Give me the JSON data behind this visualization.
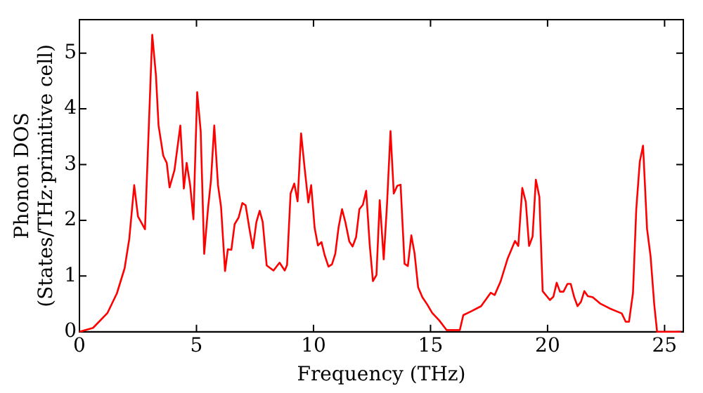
{
  "chart_data": {
    "type": "line",
    "xlabel": "Frequency (THz)",
    "ylabel": "Phonon DOS\n(States/THz·primitive cell)",
    "xlim": [
      0,
      25.8
    ],
    "ylim": [
      0,
      5.6
    ],
    "xticks": [
      0,
      5,
      10,
      15,
      20,
      25
    ],
    "yticks": [
      0,
      1,
      2,
      3,
      4,
      5
    ],
    "grid": false,
    "legend": false,
    "marker": "none",
    "line_style": "solid",
    "series": [
      {
        "color": "#ff0000",
        "x": [
          0,
          0.58,
          1.2,
          1.6,
          1.93,
          2.13,
          2.34,
          2.5,
          2.8,
          3.11,
          3.27,
          3.38,
          3.58,
          3.73,
          3.85,
          4.06,
          4.31,
          4.46,
          4.58,
          4.73,
          4.87,
          5.03,
          5.18,
          5.33,
          5.49,
          5.62,
          5.76,
          5.92,
          6.05,
          6.22,
          6.34,
          6.49,
          6.63,
          6.8,
          6.96,
          7.1,
          7.27,
          7.41,
          7.56,
          7.7,
          7.83,
          8.0,
          8.29,
          8.55,
          8.77,
          8.87,
          9.02,
          9.18,
          9.32,
          9.47,
          9.63,
          9.78,
          9.9,
          10.05,
          10.19,
          10.34,
          10.48,
          10.64,
          10.79,
          10.93,
          11.07,
          11.22,
          11.36,
          11.53,
          11.67,
          11.82,
          11.96,
          12.11,
          12.25,
          12.4,
          12.54,
          12.69,
          12.83,
          13.0,
          13.14,
          13.29,
          13.43,
          13.58,
          13.72,
          13.89,
          14.03,
          14.18,
          14.32,
          14.47,
          14.65,
          14.86,
          15.07,
          15.38,
          15.69,
          16.25,
          16.4,
          16.75,
          17.16,
          17.57,
          17.74,
          17.99,
          18.3,
          18.61,
          18.75,
          18.92,
          19.07,
          19.21,
          19.36,
          19.5,
          19.65,
          19.79,
          20.1,
          20.25,
          20.39,
          20.53,
          20.68,
          20.85,
          20.99,
          21.14,
          21.28,
          21.43,
          21.57,
          21.72,
          21.93,
          22.24,
          22.65,
          23.17,
          23.34,
          23.48,
          23.65,
          23.79,
          23.94,
          24.08,
          24.25,
          24.4,
          24.56,
          24.68,
          25.7
        ],
        "values": [
          0,
          0.07,
          0.34,
          0.69,
          1.14,
          1.67,
          2.63,
          2.07,
          1.84,
          5.33,
          4.59,
          3.7,
          3.16,
          3.03,
          2.59,
          2.9,
          3.7,
          2.57,
          3.03,
          2.63,
          2.02,
          4.3,
          3.6,
          1.4,
          2.2,
          2.72,
          3.7,
          2.63,
          2.24,
          1.09,
          1.48,
          1.47,
          1.93,
          2.05,
          2.31,
          2.27,
          1.83,
          1.5,
          1.97,
          2.17,
          1.97,
          1.19,
          1.1,
          1.24,
          1.1,
          1.2,
          2.48,
          2.66,
          2.34,
          3.56,
          2.9,
          2.32,
          2.63,
          1.86,
          1.55,
          1.61,
          1.37,
          1.17,
          1.21,
          1.4,
          1.87,
          2.2,
          1.97,
          1.62,
          1.53,
          1.7,
          2.2,
          2.28,
          2.53,
          1.57,
          0.91,
          1.02,
          2.36,
          1.3,
          2.28,
          3.6,
          2.48,
          2.62,
          2.64,
          1.22,
          1.18,
          1.73,
          1.4,
          0.8,
          0.62,
          0.49,
          0.34,
          0.2,
          0.03,
          0.03,
          0.3,
          0.37,
          0.46,
          0.7,
          0.66,
          0.9,
          1.32,
          1.63,
          1.54,
          2.58,
          2.33,
          1.54,
          1.71,
          2.73,
          2.42,
          0.73,
          0.57,
          0.63,
          0.88,
          0.72,
          0.72,
          0.86,
          0.86,
          0.62,
          0.46,
          0.54,
          0.73,
          0.64,
          0.62,
          0.51,
          0.42,
          0.33,
          0.18,
          0.18,
          0.7,
          2.2,
          3.05,
          3.34,
          1.85,
          1.36,
          0.48,
          0,
          0
        ]
      }
    ]
  }
}
